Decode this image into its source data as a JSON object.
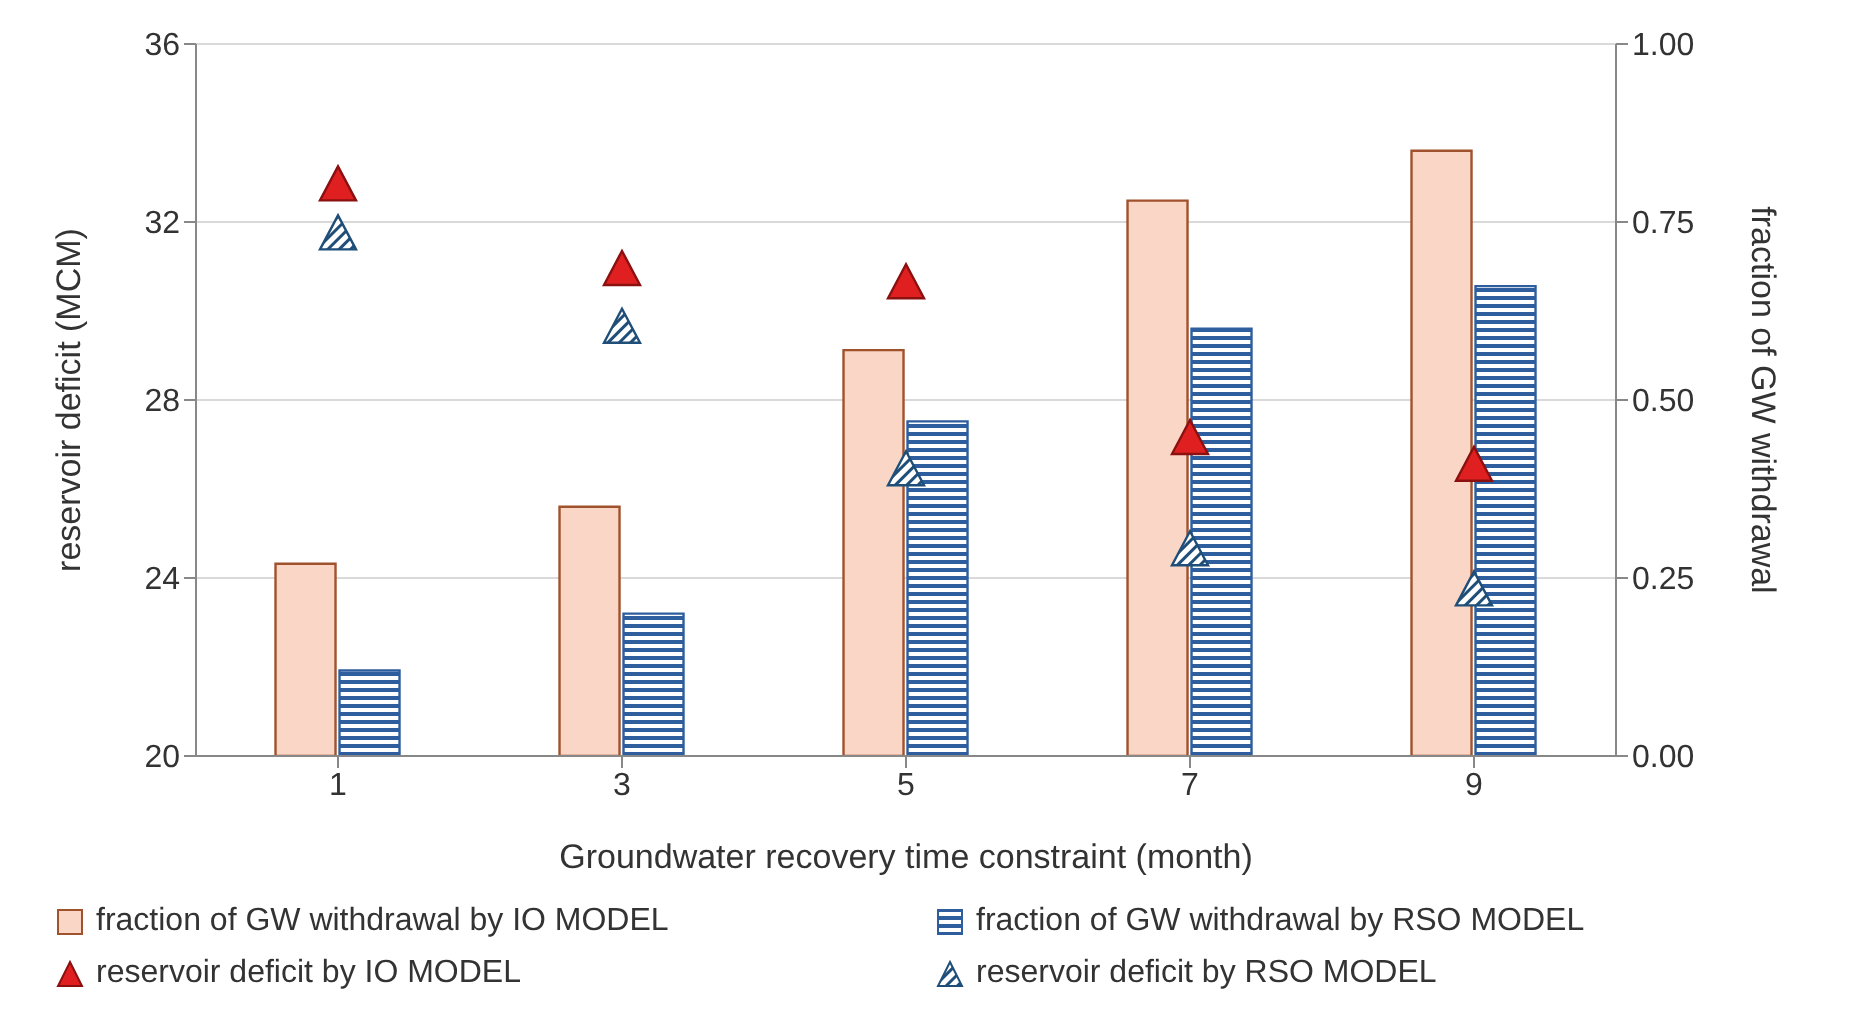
{
  "chart_data": {
    "type": "bar",
    "xlabel": "Groundwater recovery time constraint (month)",
    "ylabel": "reservoir deficit (MCM)",
    "y2label": "fraction of GW withdrawal",
    "categories": [
      "1",
      "3",
      "5",
      "7",
      "9"
    ],
    "series": [
      {
        "name": "fraction of GW withdrawal by IO MODEL",
        "axis": "y2",
        "color": "#f9d6c5",
        "values": [
          0.27,
          0.35,
          0.57,
          0.78,
          0.85
        ]
      },
      {
        "name": "fraction of GW withdrawal by RSO MODEL",
        "axis": "y2",
        "color": "#2e5e9e",
        "values": [
          0.12,
          0.2,
          0.47,
          0.6,
          0.66
        ]
      },
      {
        "name": "reservoir deficit by IO MODEL",
        "type": "scatter",
        "axis": "y",
        "color": "#e02020",
        "values": [
          32.8,
          30.9,
          30.6,
          27.1,
          26.5
        ]
      },
      {
        "name": "reservoir deficit by RSO MODEL",
        "type": "scatter",
        "axis": "y",
        "color": "#1f4e79",
        "values": [
          31.7,
          29.6,
          26.4,
          24.6,
          23.7
        ]
      }
    ],
    "ylim": [
      20,
      36
    ],
    "yticks": [
      20,
      24,
      28,
      32,
      36
    ],
    "y2lim": [
      0,
      1
    ],
    "y2ticks": [
      {
        "value": 0,
        "label": "0.00"
      },
      {
        "value": 0.25,
        "label": "0.25"
      },
      {
        "value": 0.5,
        "label": "0.50"
      },
      {
        "value": 0.75,
        "label": "0.75"
      },
      {
        "value": 1,
        "label": "1.00"
      }
    ],
    "grid": "y",
    "legend": "bottom",
    "marker": "triangle"
  }
}
